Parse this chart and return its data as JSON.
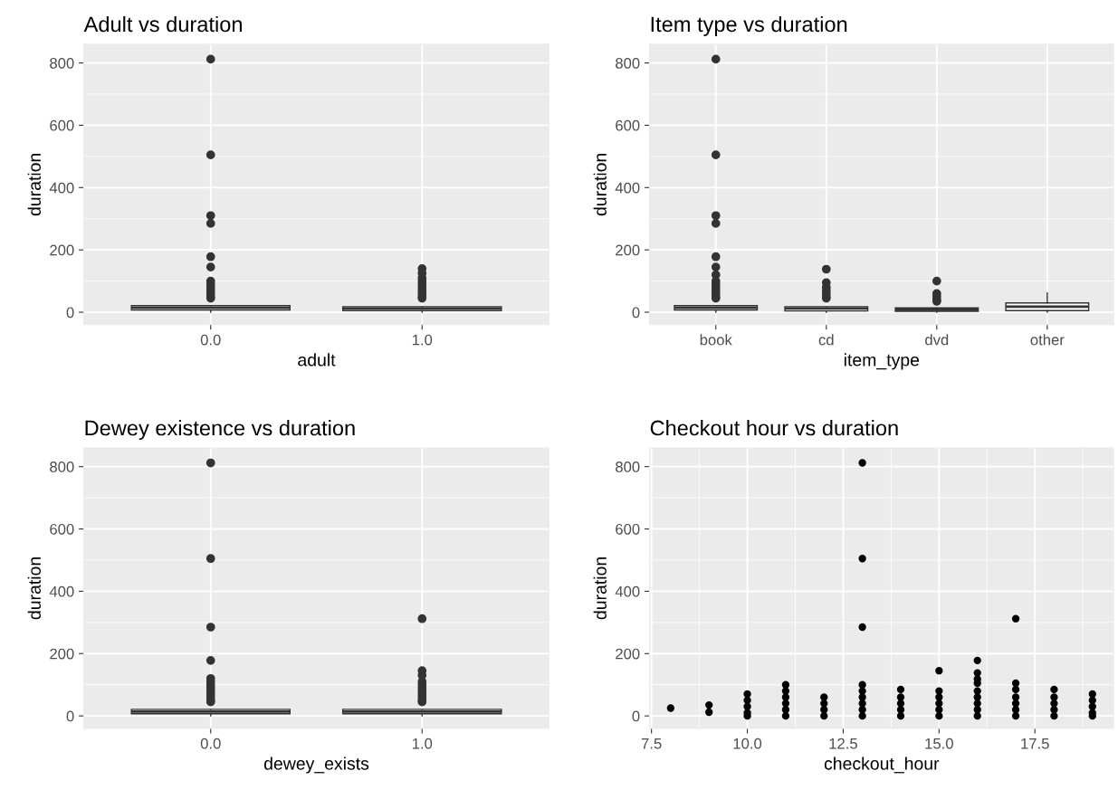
{
  "chart_data": [
    {
      "type": "box",
      "title": "Adult vs duration",
      "xlabel": "adult",
      "ylabel": "duration",
      "categories": [
        "0.0",
        "1.0"
      ],
      "color": "#333333",
      "grid": true,
      "marker": "circle",
      "ylim": [
        -40,
        860
      ],
      "yticks": [
        0,
        200,
        400,
        600,
        800
      ],
      "boxes": [
        {
          "low": 0,
          "q1": 7,
          "median": 14,
          "q3": 21,
          "outliers": [
            812,
            505,
            310,
            285,
            178,
            145,
            100,
            90,
            80,
            70,
            60,
            50,
            45
          ]
        },
        {
          "low": 0,
          "q1": 5,
          "median": 12,
          "q3": 18,
          "outliers": [
            140,
            125,
            110,
            100,
            90,
            80,
            70,
            60,
            50,
            45
          ]
        }
      ]
    },
    {
      "type": "box",
      "title": "Item type vs duration",
      "xlabel": "item_type",
      "ylabel": "duration",
      "categories": [
        "book",
        "cd",
        "dvd",
        "other"
      ],
      "color": "#333333",
      "grid": true,
      "marker": "circle",
      "ylim": [
        -40,
        860
      ],
      "yticks": [
        0,
        200,
        400,
        600,
        800
      ],
      "boxes": [
        {
          "low": 0,
          "q1": 7,
          "median": 14,
          "q3": 21,
          "outliers": [
            812,
            505,
            310,
            285,
            178,
            145,
            120,
            100,
            90,
            80,
            70,
            60,
            50,
            45
          ]
        },
        {
          "low": 0,
          "q1": 4,
          "median": 12,
          "q3": 18,
          "outliers": [
            138,
            95,
            80,
            70,
            60,
            50,
            45
          ]
        },
        {
          "low": 0,
          "q1": 3,
          "median": 8,
          "q3": 14,
          "outliers": [
            100,
            60,
            50,
            40,
            35
          ]
        },
        {
          "low": 0,
          "q1": 5,
          "median": 18,
          "q3": 30,
          "high": 62
        }
      ]
    },
    {
      "type": "box",
      "title": "Dewey existence vs duration",
      "xlabel": "dewey_exists",
      "ylabel": "duration",
      "categories": [
        "0.0",
        "1.0"
      ],
      "color": "#333333",
      "grid": true,
      "marker": "circle",
      "ylim": [
        -40,
        860
      ],
      "yticks": [
        0,
        200,
        400,
        600,
        800
      ],
      "boxes": [
        {
          "low": 0,
          "q1": 7,
          "median": 14,
          "q3": 21,
          "outliers": [
            812,
            505,
            285,
            178,
            120,
            110,
            100,
            90,
            80,
            70,
            60,
            50,
            45
          ]
        },
        {
          "low": 0,
          "q1": 7,
          "median": 14,
          "q3": 21,
          "outliers": [
            312,
            145,
            130,
            110,
            100,
            90,
            80,
            70,
            60,
            50,
            45
          ]
        }
      ]
    },
    {
      "type": "scatter",
      "title": "Checkout hour vs duration",
      "xlabel": "checkout_hour",
      "ylabel": "duration",
      "color": "#000000",
      "grid": true,
      "marker": "circle",
      "xlim": [
        7.45,
        19.55
      ],
      "xticks": [
        7.5,
        {
          "value": 10,
          "label": "10.0"
        },
        12.5,
        {
          "value": 15,
          "label": "15.0"
        },
        17.5
      ],
      "ylim": [
        -40,
        860
      ],
      "yticks": [
        0,
        200,
        400,
        600,
        800
      ],
      "x": [
        8,
        9,
        9,
        10,
        10,
        10,
        10,
        10,
        11,
        11,
        11,
        11,
        11,
        11,
        12,
        12,
        12,
        12,
        13,
        13,
        13,
        13,
        13,
        13,
        13,
        13,
        13,
        14,
        14,
        14,
        14,
        14,
        15,
        15,
        15,
        15,
        15,
        15,
        16,
        16,
        16,
        16,
        16,
        16,
        16,
        16,
        16,
        17,
        17,
        17,
        17,
        17,
        17,
        17,
        18,
        18,
        18,
        18,
        18,
        19,
        19,
        19,
        19,
        19
      ],
      "values": [
        25,
        35,
        12,
        70,
        50,
        30,
        10,
        0,
        100,
        80,
        60,
        40,
        20,
        0,
        60,
        40,
        20,
        0,
        812,
        505,
        285,
        100,
        80,
        60,
        40,
        20,
        0,
        85,
        60,
        40,
        20,
        0,
        145,
        80,
        60,
        40,
        20,
        0,
        178,
        138,
        118,
        105,
        80,
        60,
        40,
        20,
        0,
        312,
        105,
        85,
        60,
        40,
        20,
        0,
        85,
        60,
        40,
        20,
        0,
        70,
        50,
        30,
        10,
        0
      ]
    }
  ]
}
